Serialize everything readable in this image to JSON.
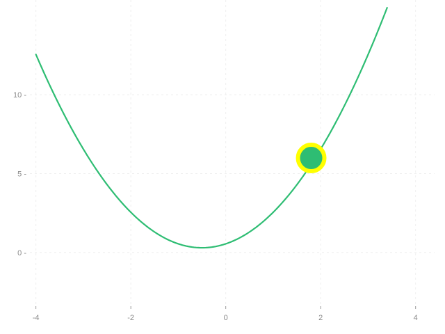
{
  "chart_data": {
    "type": "line",
    "title": "",
    "xlabel": "",
    "ylabel": "",
    "xlim": [
      -4.2,
      4.4
    ],
    "ylim": [
      -3.4,
      16.0
    ],
    "grid": true,
    "x_ticks": [
      -4,
      -2,
      0,
      2,
      4
    ],
    "x_tick_labels": [
      "-4",
      "-2",
      "0",
      "2",
      "4"
    ],
    "y_ticks": [
      0,
      5,
      10
    ],
    "y_tick_labels": [
      "0 -",
      "5 -",
      "10 -"
    ],
    "series": [
      {
        "color": "#2ebd73",
        "function": "x^2 + x + 0.55",
        "x_range": [
          -4,
          3.4
        ],
        "points": [
          [
            -4,
            12.55
          ],
          [
            -3.5,
            9.3
          ],
          [
            -3,
            6.55
          ],
          [
            -2.5,
            4.3
          ],
          [
            -2,
            2.55
          ],
          [
            -1.5,
            1.3
          ],
          [
            -1,
            0.55
          ],
          [
            -0.5,
            0.3
          ],
          [
            0,
            0.55
          ],
          [
            0.5,
            1.3
          ],
          [
            1,
            2.55
          ],
          [
            1.5,
            4.3
          ],
          [
            2,
            6.55
          ],
          [
            2.5,
            9.3
          ],
          [
            3,
            12.55
          ],
          [
            3.4,
            15.51
          ]
        ]
      }
    ],
    "highlight_point": {
      "x": 1.8,
      "y": 5.99,
      "fill": "#2ebd73",
      "stroke": "#ffff00"
    }
  }
}
